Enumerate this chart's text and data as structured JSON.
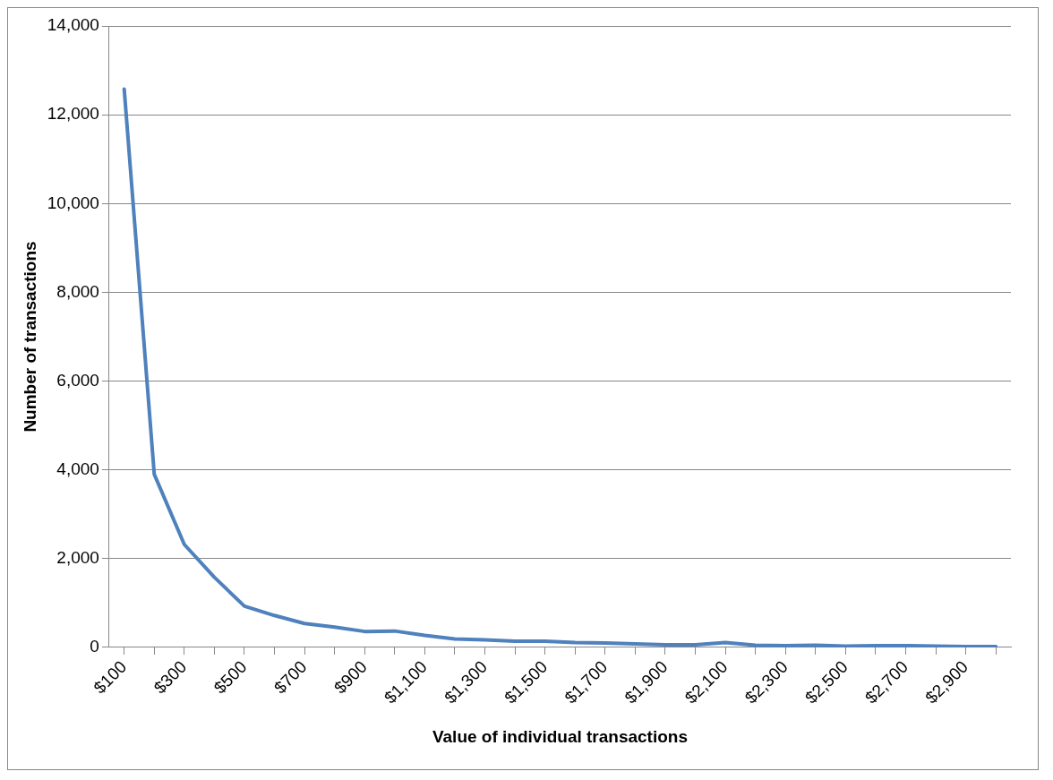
{
  "chart_data": {
    "type": "line",
    "xlabel": "Value of individual transactions",
    "ylabel": "Number of transactions",
    "categories": [
      "$100",
      null,
      "$300",
      null,
      "$500",
      null,
      "$700",
      null,
      "$900",
      null,
      "$1,100",
      null,
      "$1,300",
      null,
      "$1,500",
      null,
      "$1,700",
      null,
      "$1,900",
      null,
      "$2,100",
      null,
      "$2,300",
      null,
      "$2,500",
      null,
      "$2,700",
      null,
      "$2,900",
      null
    ],
    "series": [
      {
        "color": "#4f81bd",
        "values": [
          12580,
          3900,
          2320,
          1580,
          930,
          720,
          540,
          460,
          360,
          370,
          270,
          190,
          170,
          140,
          140,
          110,
          100,
          80,
          60,
          60,
          110,
          50,
          40,
          50,
          30,
          40,
          40,
          30,
          20,
          20
        ]
      }
    ],
    "ylim": [
      0,
      14000
    ],
    "yticks": [
      0,
      {
        "value": 2000,
        "label": "2,000"
      },
      {
        "value": 4000,
        "label": "4,000"
      },
      {
        "value": 6000,
        "label": "6,000"
      },
      {
        "value": 8000,
        "label": "8,000"
      },
      {
        "value": 10000,
        "label": "10,000"
      },
      {
        "value": 12000,
        "label": "12,000"
      },
      {
        "value": 14000,
        "label": "14,000"
      }
    ],
    "grid": "y",
    "legend": false,
    "marker": "none",
    "line_style": "solid"
  }
}
